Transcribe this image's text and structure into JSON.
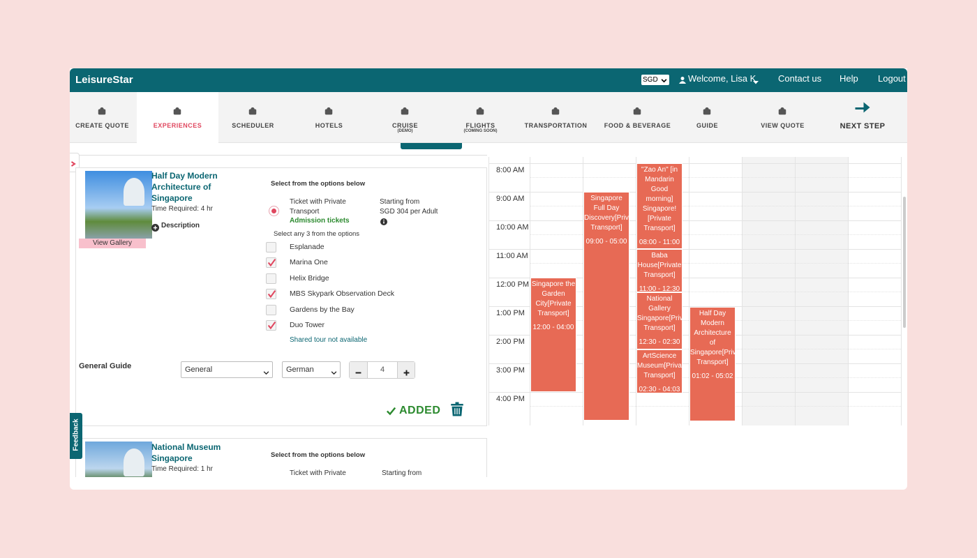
{
  "header": {
    "brand": "LeisureStar",
    "currency": "SGD",
    "welcome": "Welcome, Lisa K",
    "links": [
      "Contact us",
      "Help",
      "Logout"
    ]
  },
  "nav": {
    "items": [
      {
        "label": "CREATE QUOTE"
      },
      {
        "label": "EXPERIENCES",
        "active": true
      },
      {
        "label": "SCHEDULER"
      },
      {
        "label": "HOTELS"
      },
      {
        "label": "CRUISE",
        "sub": "(DEMO)"
      },
      {
        "label": "FLIGHTS",
        "sub": "(COMING SOON)"
      },
      {
        "label": "TRANSPORTATION"
      },
      {
        "label": "FOOD & BEVERAGE"
      },
      {
        "label": "GUIDE"
      },
      {
        "label": "VIEW QUOTE"
      }
    ],
    "next_step": "NEXT STEP"
  },
  "feedback": "Feedback",
  "experiences": [
    {
      "title": "Half Day Modern Architecture of Singapore",
      "time": "Time Required: 4 hr",
      "description": "Description",
      "gallery": "View Gallery",
      "options_heading": "Select from the options below",
      "option": {
        "name": "Ticket with Private Transport",
        "category": "Admission tickets",
        "price_label": "Starting from",
        "price": "SGD 304 per Adult",
        "selected": true
      },
      "select_hint": "Select any 3 from the options",
      "choices": [
        {
          "label": "Esplanade",
          "checked": false
        },
        {
          "label": "Marina One",
          "checked": true
        },
        {
          "label": "Helix Bridge",
          "checked": false
        },
        {
          "label": "MBS Skypark Observation Deck",
          "checked": true
        },
        {
          "label": "Gardens by the Bay",
          "checked": false
        },
        {
          "label": "Duo Tower",
          "checked": true
        }
      ],
      "shared_note": "Shared tour not available",
      "guide": {
        "label": "General Guide",
        "type": "General",
        "language": "German",
        "quantity": 4
      },
      "status": "ADDED"
    },
    {
      "title": "National Museum Singapore",
      "time": "Time Required: 1 hr",
      "options_heading": "Select from the options below",
      "option": {
        "name": "Ticket with Private",
        "price_label": "Starting from"
      }
    }
  ],
  "calendar": {
    "times": [
      "8:00 AM",
      "9:00 AM",
      "10:00 AM",
      "11:00 AM",
      "12:00 PM",
      "1:00 PM",
      "2:00 PM",
      "3:00 PM",
      "4:00 PM"
    ],
    "columns": [
      [
        {
          "title": "Singapore the Garden City[Private Transport]",
          "time": "12:00 - 04:00"
        }
      ],
      [
        {
          "title": "Singapore Full Day Discovery[Private Transport]",
          "time": "09:00 - 05:00"
        }
      ],
      [
        {
          "title": "\"Zao An\" [in Mandarin Good morning] Singapore! [Private Transport]",
          "time": "08:00 - 11:00"
        },
        {
          "title": "Baba House[Private Transport]",
          "time": "11:00 - 12:30"
        },
        {
          "title": "National Gallery Singapore[Private Transport]",
          "time": "12:30 - 02:30"
        },
        {
          "title": "ArtScience Museum[Private Transport]",
          "time": "02:30 - 04:03"
        }
      ],
      [
        {
          "title": "Half Day Modern Architecture of Singapore[Private Transport]",
          "time": "01:02 - 05:02"
        }
      ]
    ]
  }
}
